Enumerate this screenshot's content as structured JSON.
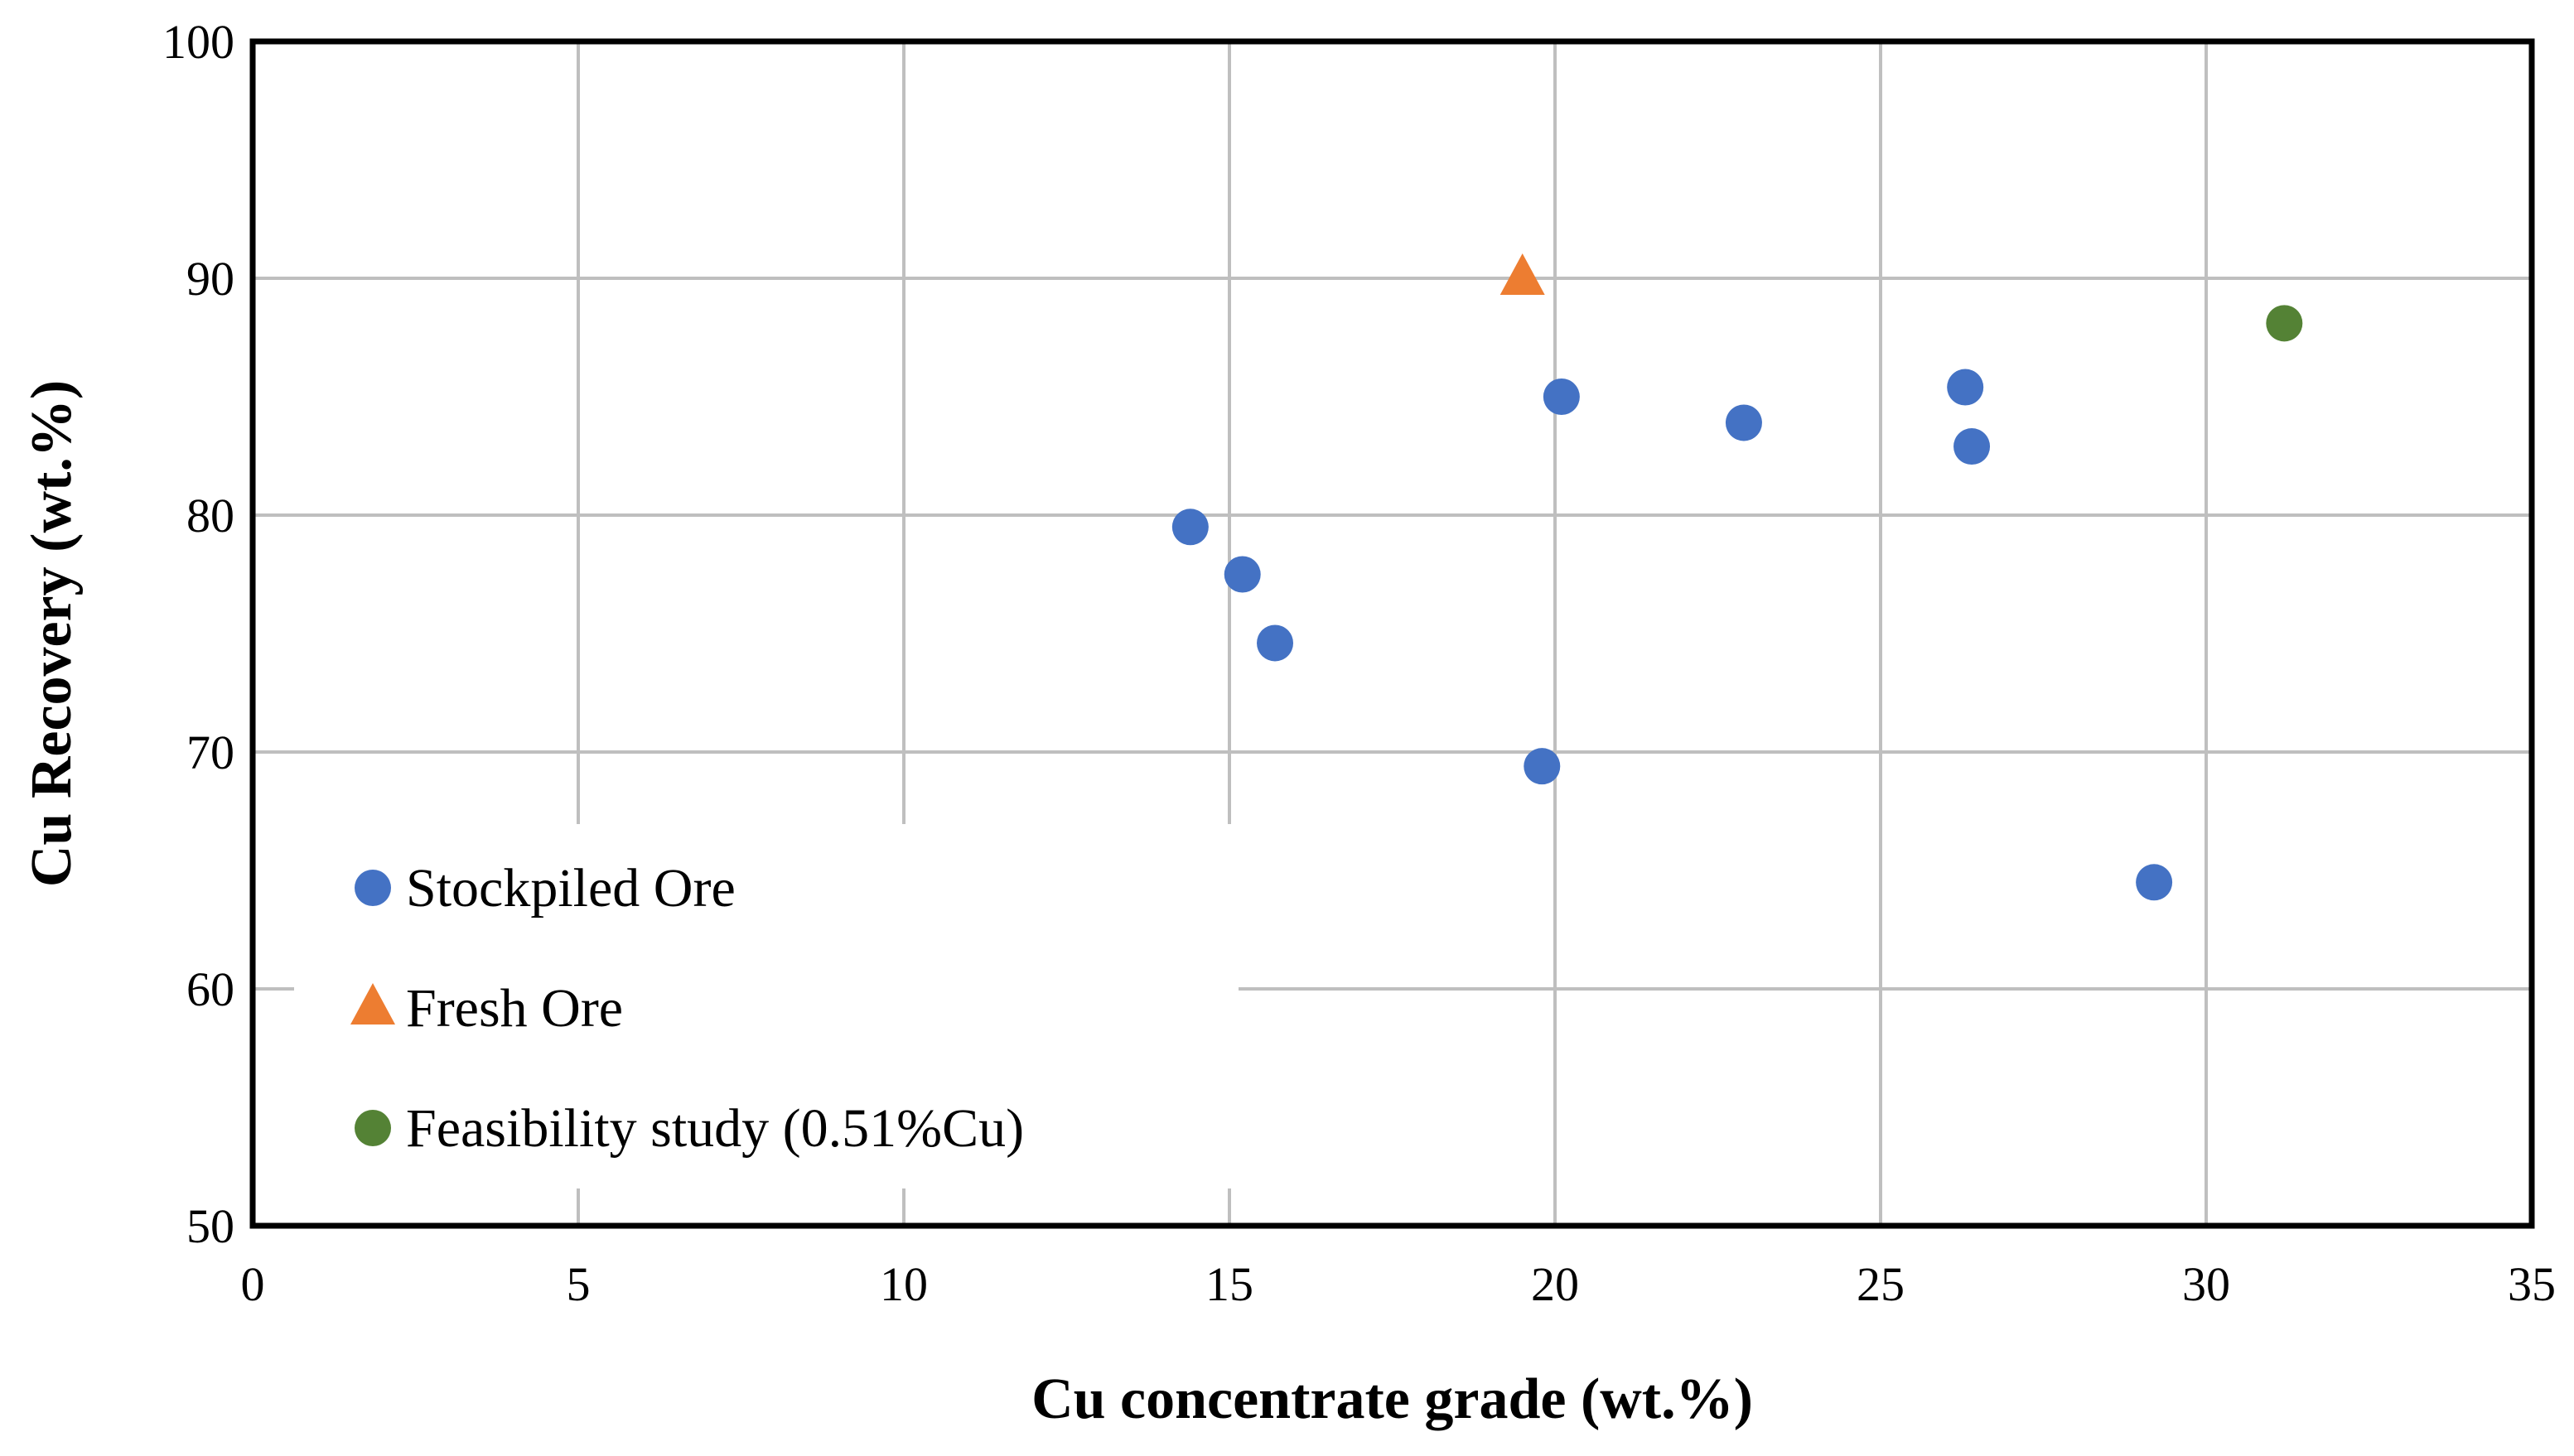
{
  "chart_data": {
    "type": "scatter",
    "xlabel": "Cu concentrate grade (wt.%)",
    "ylabel": "Cu Recovery (wt.%)",
    "xlim": [
      0,
      35
    ],
    "ylim": [
      50,
      100
    ],
    "x_ticks": [
      "0",
      "5",
      "10",
      "15",
      "20",
      "25",
      "30",
      "35"
    ],
    "y_ticks": [
      "50",
      "60",
      "70",
      "80",
      "90",
      "100"
    ],
    "grid": true,
    "legend_position": "bottom-left",
    "series": [
      {
        "name": "Stockpiled Ore",
        "marker": "circle",
        "color": "#4472C4",
        "points": [
          {
            "x": 14.4,
            "y": 79.5
          },
          {
            "x": 15.2,
            "y": 77.5
          },
          {
            "x": 15.7,
            "y": 74.6
          },
          {
            "x": 19.8,
            "y": 69.4
          },
          {
            "x": 20.1,
            "y": 85.0
          },
          {
            "x": 22.9,
            "y": 83.9
          },
          {
            "x": 26.3,
            "y": 85.4
          },
          {
            "x": 26.4,
            "y": 82.9
          },
          {
            "x": 29.2,
            "y": 64.5
          }
        ]
      },
      {
        "name": "Fresh Ore",
        "marker": "triangle",
        "color": "#ED7D31",
        "points": [
          {
            "x": 19.5,
            "y": 90.0
          }
        ]
      },
      {
        "name": "Feasibility study (0.51%Cu)",
        "marker": "circle",
        "color": "#548235",
        "points": [
          {
            "x": 31.2,
            "y": 88.1
          }
        ]
      }
    ]
  }
}
